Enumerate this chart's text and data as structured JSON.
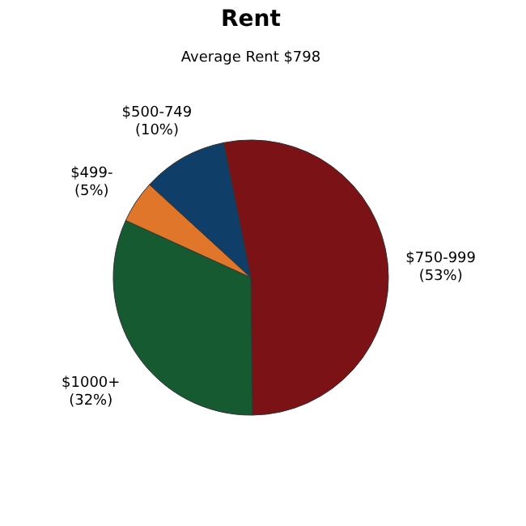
{
  "chart_data": {
    "type": "pie",
    "title": "Rent",
    "subtitle": "Average Rent  $798",
    "categories": [
      "$750-999",
      "$1000+",
      "$499-",
      "$500-749"
    ],
    "values": [
      53,
      32,
      5,
      10
    ],
    "value_labels": [
      "(53%)",
      "(32%)",
      "(5%)",
      "(10%)"
    ],
    "colors": [
      "#7a1216",
      "#155a30",
      "#e0762a",
      "#0f3f68"
    ],
    "legend": false
  }
}
